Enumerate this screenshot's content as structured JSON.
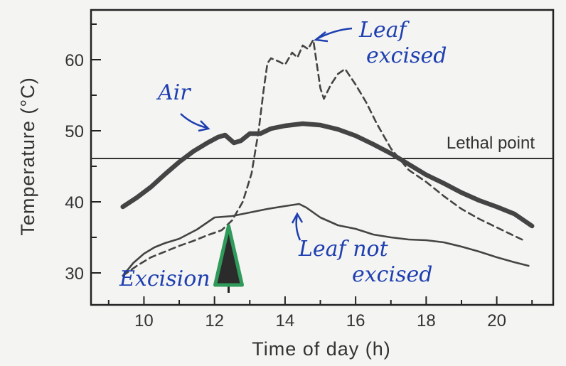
{
  "chart_data": {
    "type": "line",
    "xlabel": "Time of day (h)",
    "ylabel": "Temperature (°C)",
    "xlim": [
      8.5,
      21.6
    ],
    "ylim": [
      25.5,
      67
    ],
    "xticks": [
      10,
      12,
      14,
      16,
      18,
      20
    ],
    "yticks": [
      30,
      40,
      50,
      60
    ],
    "grid": false,
    "series": [
      {
        "name": "Air",
        "style": "thick-solid",
        "color": "#444444",
        "points": [
          [
            9.4,
            39.3
          ],
          [
            9.8,
            40.6
          ],
          [
            10.2,
            42.1
          ],
          [
            10.6,
            43.9
          ],
          [
            11.0,
            45.6
          ],
          [
            11.4,
            47.1
          ],
          [
            11.8,
            48.3
          ],
          [
            12.1,
            49.1
          ],
          [
            12.3,
            49.4
          ],
          [
            12.55,
            48.3
          ],
          [
            12.75,
            48.6
          ],
          [
            13.0,
            49.6
          ],
          [
            13.3,
            49.6
          ],
          [
            13.6,
            50.3
          ],
          [
            14.0,
            50.7
          ],
          [
            14.5,
            51.0
          ],
          [
            15.0,
            50.8
          ],
          [
            15.5,
            50.2
          ],
          [
            16.0,
            49.3
          ],
          [
            16.5,
            48.1
          ],
          [
            17.0,
            46.8
          ],
          [
            17.5,
            45.3
          ],
          [
            18.0,
            43.8
          ],
          [
            18.5,
            42.6
          ],
          [
            19.0,
            41.3
          ],
          [
            19.5,
            40.2
          ],
          [
            20.0,
            39.3
          ],
          [
            20.5,
            38.3
          ],
          [
            21.0,
            36.6
          ]
        ]
      },
      {
        "name": "Leaf excised",
        "style": "dashed",
        "color": "#444444",
        "points": [
          [
            9.4,
            29.6
          ],
          [
            9.8,
            31.0
          ],
          [
            10.2,
            32.2
          ],
          [
            10.6,
            33.0
          ],
          [
            11.0,
            33.8
          ],
          [
            11.4,
            34.5
          ],
          [
            11.8,
            35.3
          ],
          [
            12.2,
            36.0
          ],
          [
            12.5,
            37.4
          ],
          [
            12.8,
            40.0
          ],
          [
            13.05,
            44.0
          ],
          [
            13.25,
            50.0
          ],
          [
            13.4,
            56.0
          ],
          [
            13.5,
            59.5
          ],
          [
            13.6,
            60.2
          ],
          [
            13.8,
            59.8
          ],
          [
            14.0,
            59.3
          ],
          [
            14.2,
            61.0
          ],
          [
            14.35,
            60.3
          ],
          [
            14.5,
            62.0
          ],
          [
            14.65,
            61.5
          ],
          [
            14.8,
            62.8
          ],
          [
            15.0,
            56.0
          ],
          [
            15.1,
            54.5
          ],
          [
            15.3,
            56.5
          ],
          [
            15.5,
            58.0
          ],
          [
            15.7,
            58.7
          ],
          [
            16.0,
            56.5
          ],
          [
            16.3,
            54.0
          ],
          [
            16.6,
            51.0
          ],
          [
            17.0,
            47.5
          ],
          [
            17.5,
            44.5
          ],
          [
            18.0,
            42.8
          ],
          [
            18.5,
            40.8
          ],
          [
            19.0,
            39.0
          ],
          [
            19.5,
            37.6
          ],
          [
            20.0,
            36.4
          ],
          [
            20.5,
            35.2
          ],
          [
            20.8,
            34.5
          ]
        ]
      },
      {
        "name": "Leaf not excised",
        "style": "thin-solid",
        "color": "#444444",
        "points": [
          [
            9.4,
            29.6
          ],
          [
            9.7,
            31.4
          ],
          [
            10.0,
            32.7
          ],
          [
            10.3,
            33.6
          ],
          [
            10.6,
            34.2
          ],
          [
            11.0,
            34.8
          ],
          [
            11.5,
            36.1
          ],
          [
            12.0,
            37.8
          ],
          [
            12.5,
            38.0
          ],
          [
            13.0,
            38.5
          ],
          [
            13.5,
            39.0
          ],
          [
            14.0,
            39.4
          ],
          [
            14.4,
            39.7
          ],
          [
            14.6,
            39.2
          ],
          [
            15.0,
            37.8
          ],
          [
            15.5,
            36.7
          ],
          [
            16.0,
            36.2
          ],
          [
            16.5,
            35.4
          ],
          [
            17.0,
            35.0
          ],
          [
            17.5,
            34.7
          ],
          [
            18.0,
            34.6
          ],
          [
            18.5,
            34.3
          ],
          [
            19.0,
            33.7
          ],
          [
            19.5,
            33.0
          ],
          [
            20.0,
            32.2
          ],
          [
            20.5,
            31.5
          ],
          [
            20.9,
            31.0
          ]
        ]
      }
    ],
    "reference_lines": [
      {
        "label": "Lethal point",
        "y": 46.1
      }
    ],
    "annotations": [
      {
        "text": "Air",
        "color": "#1e3fb0"
      },
      {
        "text": "Leaf excised",
        "lines": [
          "Leaf",
          "excised"
        ],
        "color": "#1e3fb0"
      },
      {
        "text": "Leaf not excised",
        "lines": [
          "Leaf not",
          "excised"
        ],
        "color": "#1e3fb0"
      },
      {
        "text": "Excision",
        "color": "#1e3fb0",
        "at_x": 12.4
      }
    ],
    "marker": {
      "name": "excision-marker",
      "x": 12.4,
      "fill": "#2b2b2b",
      "outline": "#2f9a5a"
    }
  }
}
